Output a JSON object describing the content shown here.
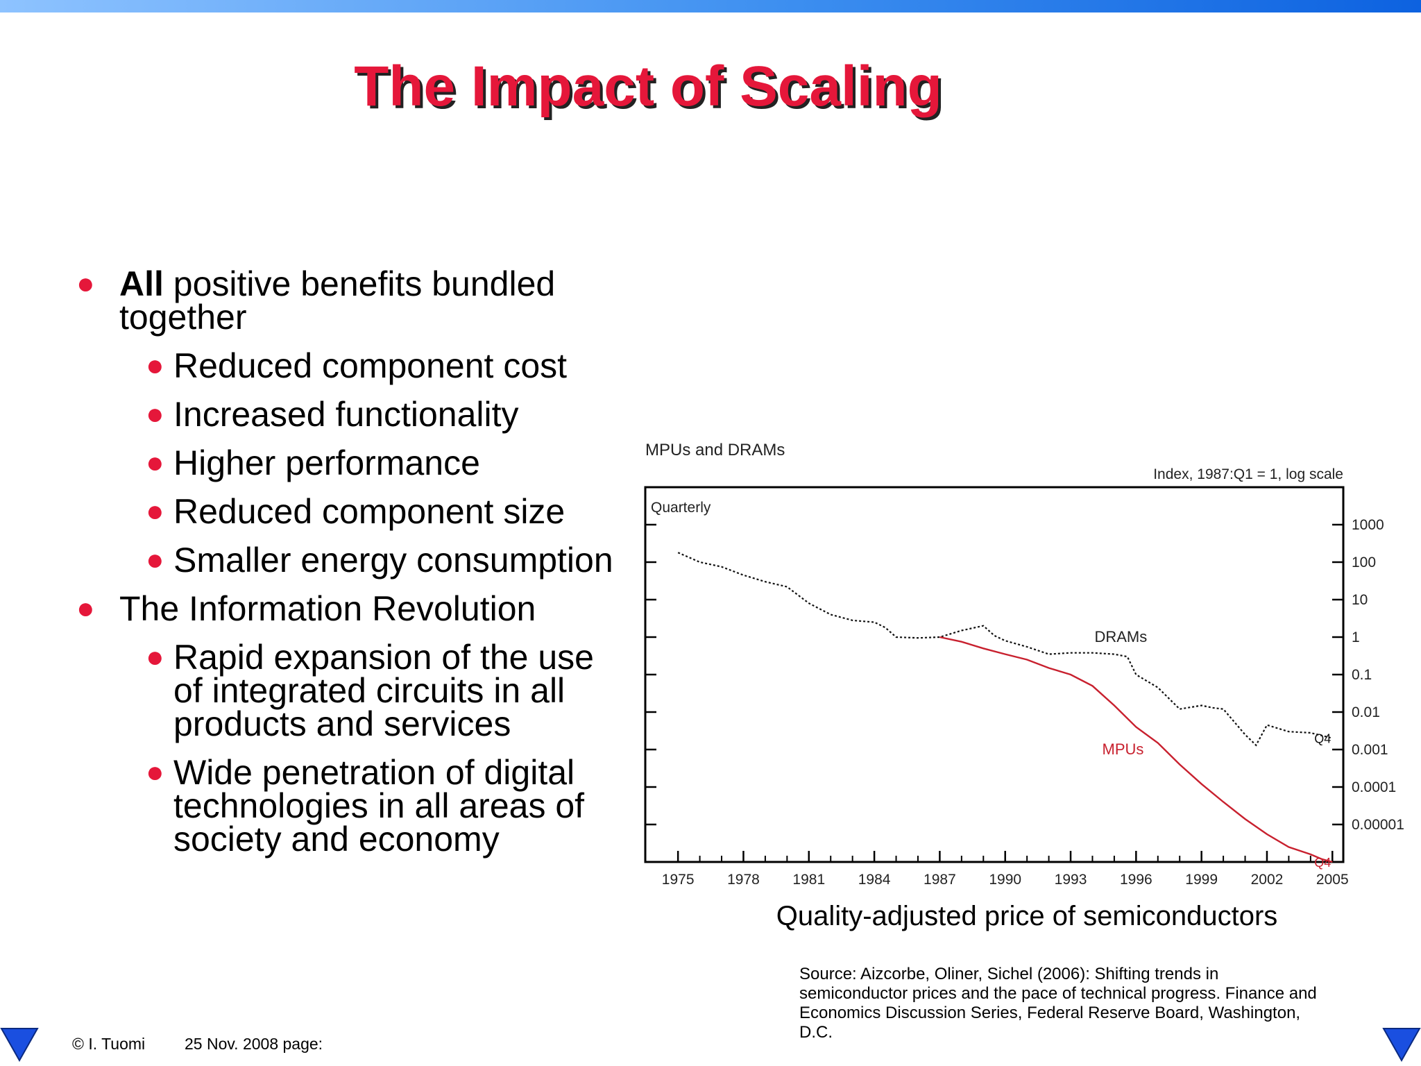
{
  "slide": {
    "title": "The Impact of Scaling",
    "bullets": [
      {
        "bold": "All",
        "text": " positive benefits bundled together"
      },
      {
        "text": "Reduced component cost"
      },
      {
        "text": "Increased functionality"
      },
      {
        "text": "Higher performance"
      },
      {
        "text": "Reduced component size"
      },
      {
        "text": "Smaller energy consumption"
      },
      {
        "text": "The Information Revolution"
      },
      {
        "text": "Rapid expansion of the use of integrated circuits in all products and services"
      },
      {
        "text": "Wide penetration of digital technologies in all areas of society and economy"
      }
    ],
    "chart_caption": "Quality-adjusted price of semiconductors",
    "source_text": "Source: Aizcorbe, Oliner, Sichel (2006): Shifting trends in semiconductor prices and the pace of technical progress. Finance and Economics Discussion Series, Federal Reserve Board, Washington, D.C.",
    "footer": {
      "author": "© I. Tuomi",
      "date_page": "25 Nov. 2008  page:"
    },
    "colors": {
      "title": "#e5173a",
      "bullet": "#e5173a",
      "mpus": "#c8202e",
      "nav": "#1a4fe0"
    }
  },
  "chart_data": {
    "type": "line",
    "title": "MPUs and DRAMs",
    "subtitle": "Index, 1987:Q1 = 1, log scale",
    "frequency_label": "Quarterly",
    "x_ticks": [
      "1975",
      "1978",
      "1981",
      "1984",
      "1987",
      "1990",
      "1993",
      "1996",
      "1999",
      "2002",
      "2005"
    ],
    "y_ticks": [
      "1000",
      "100",
      "10",
      "1",
      "0.1",
      "0.01",
      "0.001",
      "0.0001",
      "0.00001"
    ],
    "xlim": [
      1973.5,
      2005.5
    ],
    "ylim": [
      1e-06,
      10000
    ],
    "y_scale": "log",
    "series": [
      {
        "name": "DRAMs",
        "end_label": "Q4",
        "style": "dotted",
        "x": [
          1975,
          1976,
          1977,
          1978,
          1979,
          1980,
          1981,
          1982,
          1983,
          1984,
          1984.5,
          1985,
          1986,
          1987,
          1988,
          1989,
          1989.5,
          1990,
          1991,
          1992,
          1993,
          1994,
          1995,
          1995.6,
          1996,
          1997,
          1998,
          1999,
          1999.5,
          2000,
          2001,
          2001.5,
          2002,
          2003,
          2004,
          2005
        ],
        "y": [
          180,
          100,
          75,
          45,
          30,
          22,
          8,
          4,
          2.8,
          2.5,
          1.8,
          1.0,
          0.95,
          1.0,
          1.5,
          2.0,
          1.1,
          0.8,
          0.55,
          0.35,
          0.38,
          0.38,
          0.35,
          0.3,
          0.1,
          0.045,
          0.012,
          0.015,
          0.013,
          0.012,
          0.0025,
          0.0013,
          0.0045,
          0.003,
          0.0028,
          0.002
        ]
      },
      {
        "name": "MPUs",
        "end_label": "Q4",
        "style": "solid",
        "x": [
          1987,
          1988,
          1989,
          1990,
          1991,
          1992,
          1993,
          1994,
          1995,
          1996,
          1997,
          1998,
          1999,
          2000,
          2001,
          2002,
          2003,
          2004,
          2004.5,
          2005
        ],
        "y": [
          1.0,
          0.75,
          0.5,
          0.35,
          0.25,
          0.15,
          0.1,
          0.05,
          0.015,
          0.004,
          0.0015,
          0.0004,
          0.00012,
          4e-05,
          1.4e-05,
          5.5e-06,
          2.5e-06,
          1.6e-06,
          1.2e-06,
          1e-06
        ]
      }
    ]
  }
}
